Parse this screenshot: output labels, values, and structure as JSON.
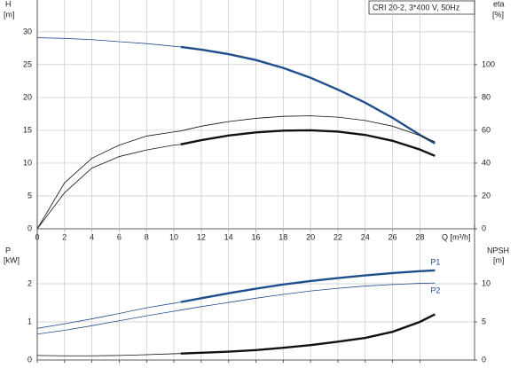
{
  "chart_data": [
    {
      "type": "line",
      "title": "CRI 20-2, 3*400 V, 50Hz",
      "x_label": "Q [m³/h]",
      "y_label": "H",
      "y_unit": "[m]",
      "y2_label": "eta",
      "y2_unit": "[%]",
      "xlim": [
        0,
        32
      ],
      "xticks": [
        0,
        2,
        4,
        6,
        8,
        10,
        12,
        14,
        16,
        18,
        20,
        22,
        24,
        26,
        28
      ],
      "ylim": [
        0,
        31.2
      ],
      "yticks": [
        0,
        5,
        10,
        15,
        20,
        25,
        30
      ],
      "y2lim": [
        0,
        124.8
      ],
      "y2ticks": [
        0,
        20,
        40,
        60,
        80,
        100
      ],
      "grid": true,
      "x": [
        0,
        2,
        4,
        6,
        8,
        10,
        10.5,
        12,
        14,
        16,
        18,
        20,
        22,
        24,
        26,
        28,
        29.1
      ],
      "series": [
        {
          "color": "#1f4e8c",
          "bold_from": 10.5,
          "values": [
            29.1,
            29.0,
            28.8,
            28.5,
            28.2,
            27.8,
            27.7,
            27.3,
            26.6,
            25.7,
            24.5,
            23.0,
            21.2,
            19.2,
            16.9,
            14.3,
            13.0
          ]
        },
        {
          "color": "#111111",
          "axis": "y2",
          "values": [
            0,
            28,
            43,
            51,
            56.5,
            59,
            59.6,
            62.5,
            65.3,
            67.3,
            68.5,
            68.8,
            68,
            66,
            62.5,
            56.8,
            53
          ]
        },
        {
          "color": "#111111",
          "axis": "y2",
          "bold_from": 10.5,
          "values": [
            0,
            22,
            37,
            44,
            48,
            51,
            51.4,
            54,
            56.8,
            58.7,
            59.8,
            60,
            59.2,
            57.2,
            53.6,
            48.3,
            44.4
          ]
        }
      ]
    },
    {
      "type": "line",
      "y_label": "P",
      "y_unit": "[kW]",
      "y2_label": "NPSH",
      "y2_unit": "[m]",
      "xlim": [
        0,
        32
      ],
      "xticks": [
        0,
        2,
        4,
        6,
        8,
        10,
        12,
        14,
        16,
        18,
        20,
        22,
        24,
        26,
        28
      ],
      "ylim": [
        0,
        2.93
      ],
      "yticks": [
        0,
        1,
        2
      ],
      "y2lim": [
        0,
        14.65
      ],
      "y2ticks": [
        0,
        5,
        10
      ],
      "grid": true,
      "x": [
        0,
        2,
        4,
        6,
        8,
        10,
        10.5,
        12,
        14,
        16,
        18,
        20,
        22,
        24,
        26,
        28,
        29.1
      ],
      "series": [
        {
          "name": "P1",
          "color": "#1f4e8c",
          "bold_from": 10.5,
          "values": [
            0.83,
            0.95,
            1.08,
            1.22,
            1.37,
            1.49,
            1.52,
            1.62,
            1.75,
            1.87,
            1.98,
            2.07,
            2.15,
            2.22,
            2.28,
            2.33,
            2.35
          ]
        },
        {
          "name": "P2",
          "color": "#1f4e8c",
          "values": [
            0.68,
            0.78,
            0.9,
            1.03,
            1.16,
            1.28,
            1.31,
            1.4,
            1.51,
            1.62,
            1.72,
            1.81,
            1.88,
            1.94,
            1.98,
            2.01,
            2.02
          ]
        },
        {
          "color": "#111111",
          "axis": "y2",
          "bold_from": 10.5,
          "values": [
            0.6,
            0.55,
            0.55,
            0.6,
            0.7,
            0.82,
            0.85,
            0.95,
            1.1,
            1.3,
            1.6,
            1.95,
            2.4,
            2.9,
            3.7,
            5.0,
            6.0
          ]
        }
      ]
    }
  ]
}
